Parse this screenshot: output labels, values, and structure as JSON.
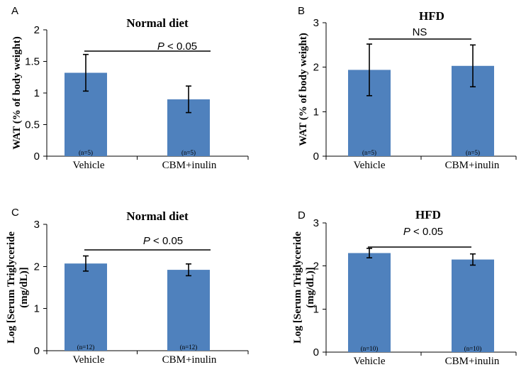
{
  "chart_data": [
    {
      "panel": "A",
      "type": "bar",
      "title": "Normal diet",
      "ylabel": "WAT (% of body weight)",
      "ylim": [
        0,
        2
      ],
      "yticks": [
        0,
        0.5,
        1,
        1.5,
        2
      ],
      "ytick_labels": [
        "0",
        "0.5",
        "1",
        "1.5",
        "2"
      ],
      "categories": [
        "Vehicle",
        "CBM+inulin"
      ],
      "n_labels": [
        "(n=5)",
        "(n=5)"
      ],
      "values": [
        1.32,
        0.9
      ],
      "errors": [
        0.29,
        0.21
      ],
      "significance": {
        "prefix": "P",
        "text": " < 0.05"
      },
      "bar_color": "#4f81bd"
    },
    {
      "panel": "B",
      "type": "bar",
      "title": "HFD",
      "ylabel": "WAT (% of body weight)",
      "ylim": [
        0,
        3
      ],
      "yticks": [
        0,
        1,
        2,
        3
      ],
      "ytick_labels": [
        "0",
        "1",
        "2",
        "3"
      ],
      "categories": [
        "Vehicle",
        "CBM+inulin"
      ],
      "n_labels": [
        "(n=5)",
        "(n=5)"
      ],
      "values": [
        1.94,
        2.03
      ],
      "errors": [
        0.58,
        0.47
      ],
      "significance": {
        "prefix": "",
        "text": "NS"
      },
      "bar_color": "#4f81bd"
    },
    {
      "panel": "C",
      "type": "bar",
      "title": "Normal diet",
      "ylabel": "Log [Serum Triglyceride (mg/dL)]",
      "ylabel_lines": [
        "Log [Serum Triglyceride",
        "(mg/dL)]"
      ],
      "ylim": [
        0,
        3
      ],
      "yticks": [
        0,
        1,
        2,
        3
      ],
      "ytick_labels": [
        "0",
        "1",
        "2",
        "3"
      ],
      "categories": [
        "Vehicle",
        "CBM+inulin"
      ],
      "n_labels": [
        "(n=12)",
        "(n=12)"
      ],
      "values": [
        2.07,
        1.92
      ],
      "errors": [
        0.18,
        0.14
      ],
      "significance": {
        "prefix": "P",
        "text": " < 0.05"
      },
      "bar_color": "#4f81bd"
    },
    {
      "panel": "D",
      "type": "bar",
      "title": "HFD",
      "ylabel": "Log [Serum Triglyceride (mg/dL)]",
      "ylabel_lines": [
        "Log [Serum Triglyceride",
        "(mg/dL)]"
      ],
      "ylim": [
        0,
        3
      ],
      "yticks": [
        0,
        1,
        2,
        3
      ],
      "ytick_labels": [
        "0",
        "1",
        "2",
        "3"
      ],
      "categories": [
        "Vehicle",
        "CBM+inulin"
      ],
      "n_labels": [
        "(n=10)",
        "(n=10)"
      ],
      "values": [
        2.3,
        2.15
      ],
      "errors": [
        0.11,
        0.13
      ],
      "significance": {
        "prefix": "P",
        "text": " < 0.05"
      },
      "bar_color": "#4f81bd"
    }
  ]
}
